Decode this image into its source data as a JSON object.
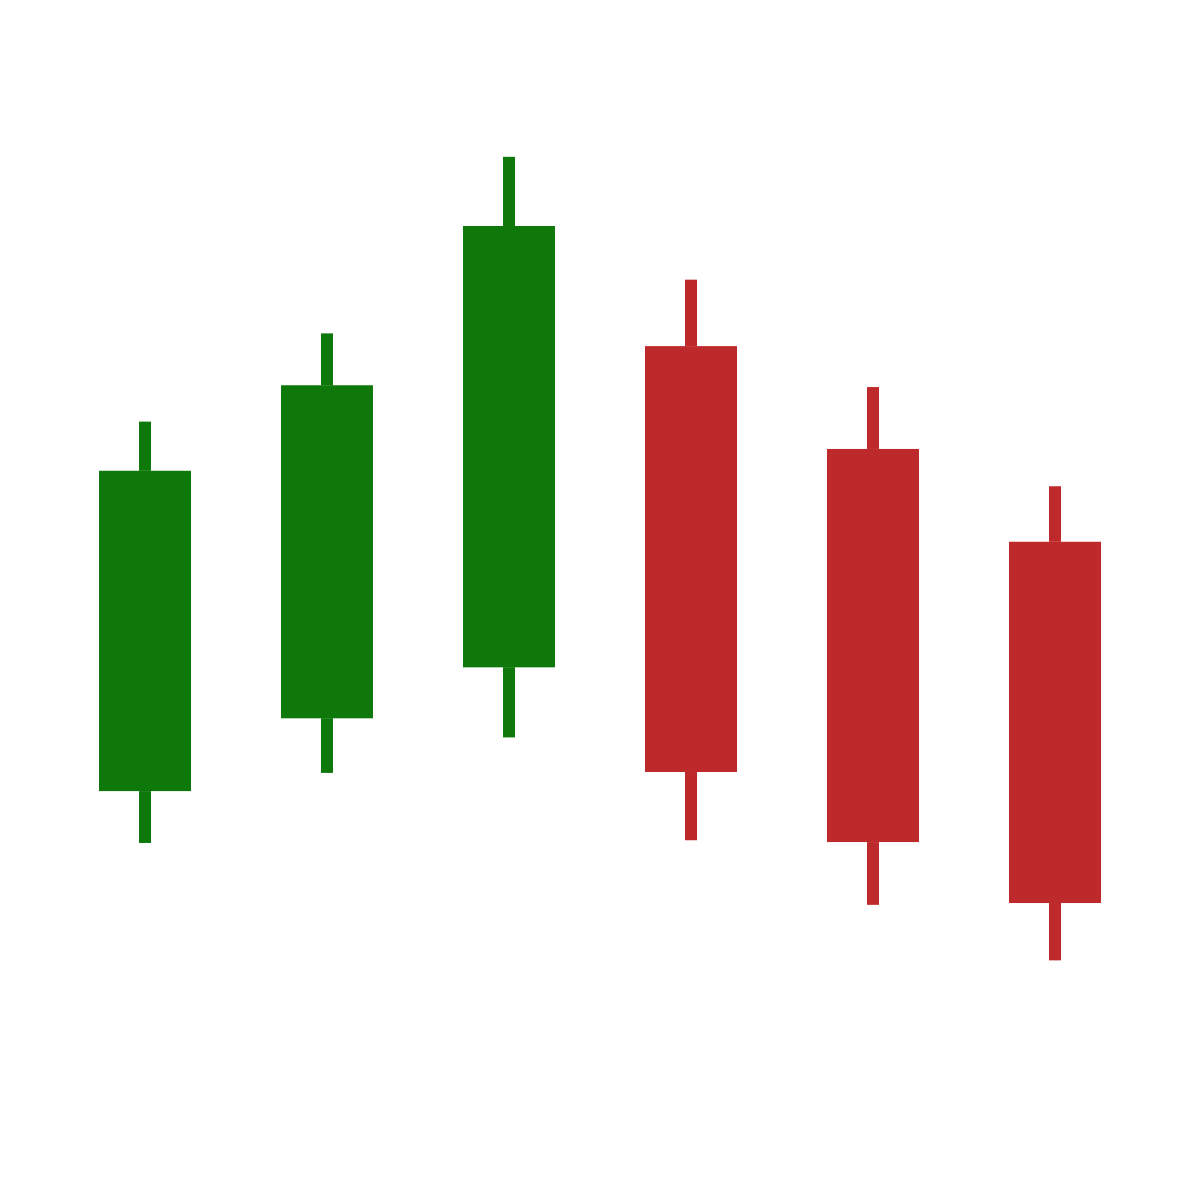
{
  "chart_data": {
    "type": "candlestick",
    "title": "",
    "xlabel": "",
    "ylabel": "",
    "axes_visible": false,
    "grid": false,
    "ylim": [
      0,
      1000
    ],
    "colors": {
      "up": "#0e780a",
      "down": "#be2a2c",
      "background": "#ffffff"
    },
    "candles": [
      {
        "direction": "up",
        "open": 290,
        "close": 642,
        "high": 696,
        "low": 233
      },
      {
        "direction": "up",
        "open": 370,
        "close": 736,
        "high": 793,
        "low": 310
      },
      {
        "direction": "up",
        "open": 426,
        "close": 911,
        "high": 987,
        "low": 349
      },
      {
        "direction": "down",
        "open": 779,
        "close": 311,
        "high": 852,
        "low": 236
      },
      {
        "direction": "down",
        "open": 666,
        "close": 234,
        "high": 734,
        "low": 165
      },
      {
        "direction": "down",
        "open": 564,
        "close": 167,
        "high": 625,
        "low": 104
      }
    ]
  }
}
